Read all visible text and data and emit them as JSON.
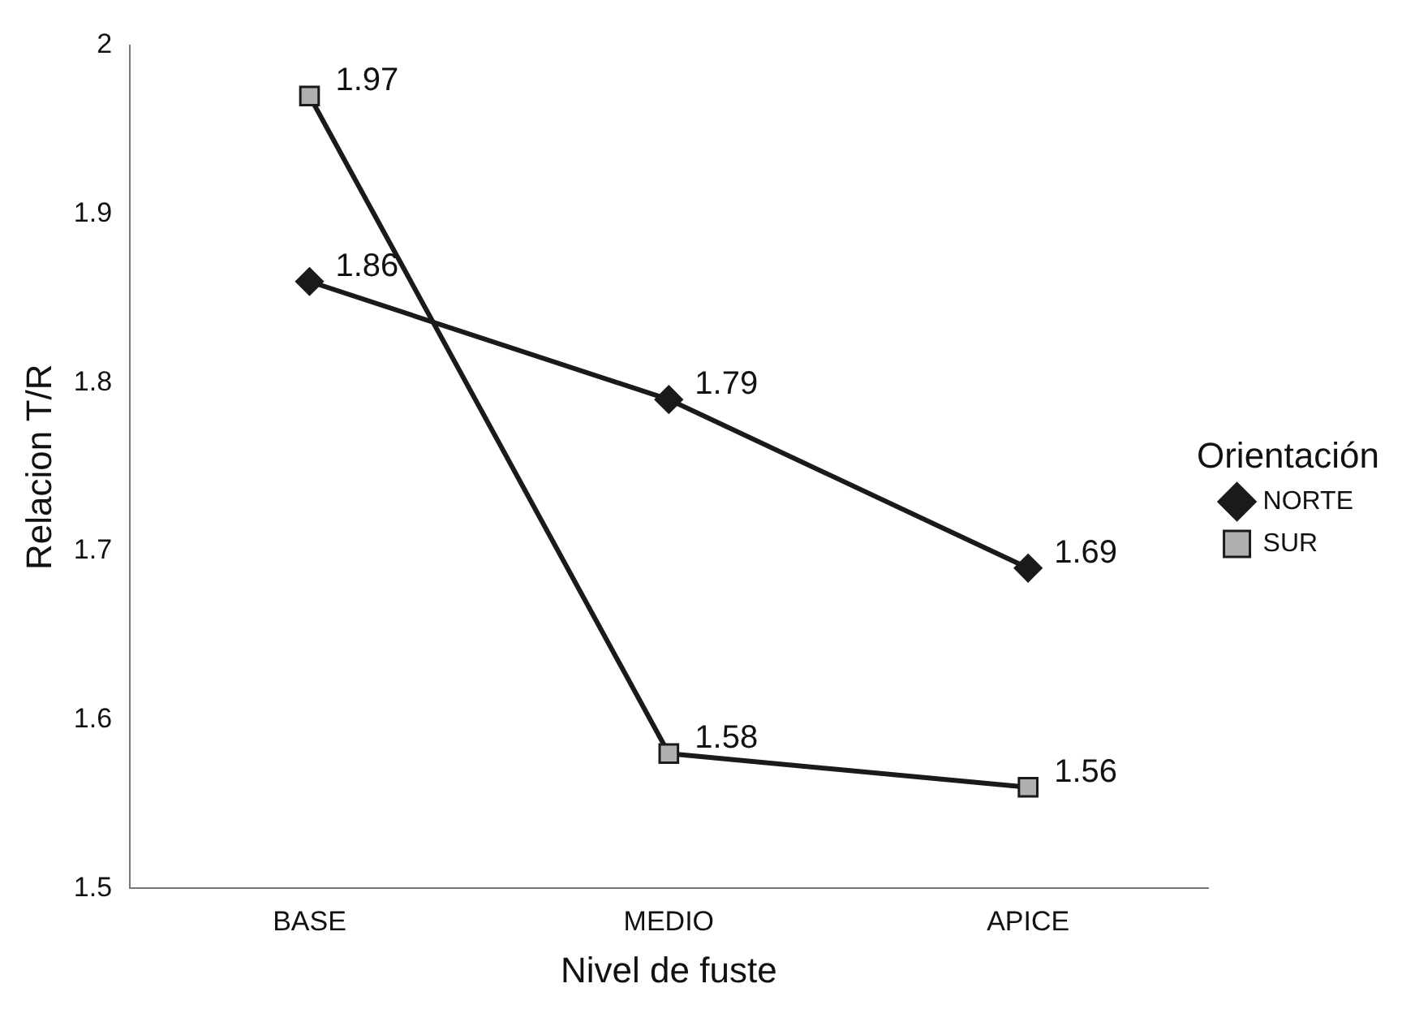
{
  "chart_data": {
    "type": "line",
    "xlabel": "Nivel de fuste",
    "ylabel": "Relacion T/R",
    "legend_title": "Orientación",
    "legend": "right",
    "grid": false,
    "data_labels": true,
    "categories": [
      "BASE",
      "MEDIO",
      "APICE"
    ],
    "ylim": [
      1.5,
      2
    ],
    "yticks": [
      1.5,
      1.6,
      1.7,
      1.8,
      1.9,
      2
    ],
    "series": [
      {
        "name": "NORTE",
        "color": "#1a1a1a",
        "marker": "diamond",
        "values": [
          1.86,
          1.79,
          1.69
        ]
      },
      {
        "name": "SUR",
        "color": "#1a1a1a",
        "marker": "square",
        "values": [
          1.97,
          1.58,
          1.56
        ]
      }
    ]
  }
}
